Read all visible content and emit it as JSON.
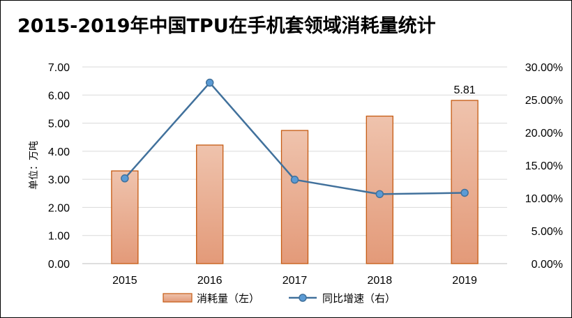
{
  "chart_data": {
    "type": "bar",
    "title": "2015-2019年中国TPU在手机套领域消耗量统计",
    "categories": [
      "2015",
      "2016",
      "2017",
      "2018",
      "2019"
    ],
    "ylabel": "单位：万吨",
    "ylim": [
      0,
      7
    ],
    "y2lim": [
      0,
      30
    ],
    "y_ticks": [
      "0.00",
      "1.00",
      "2.00",
      "3.00",
      "4.00",
      "5.00",
      "6.00",
      "7.00"
    ],
    "y2_ticks": [
      "0.00%",
      "5.00%",
      "10.00%",
      "15.00%",
      "20.00%",
      "25.00%",
      "30.00%"
    ],
    "grid": true,
    "legend_position": "bottom",
    "series": [
      {
        "name": "消耗量（左）",
        "type": "bar",
        "axis": "left",
        "values": [
          3.3,
          4.22,
          4.74,
          5.25,
          5.81
        ],
        "data_labels": {
          "4": "5.81"
        },
        "color": "#e39a79",
        "border_color": "#c55a11"
      },
      {
        "name": "同比增速（右）",
        "type": "line",
        "axis": "right",
        "values": [
          13.0,
          27.6,
          12.8,
          10.6,
          10.8
        ],
        "color": "#41719c",
        "marker_color": "#5b9bd5"
      }
    ]
  }
}
